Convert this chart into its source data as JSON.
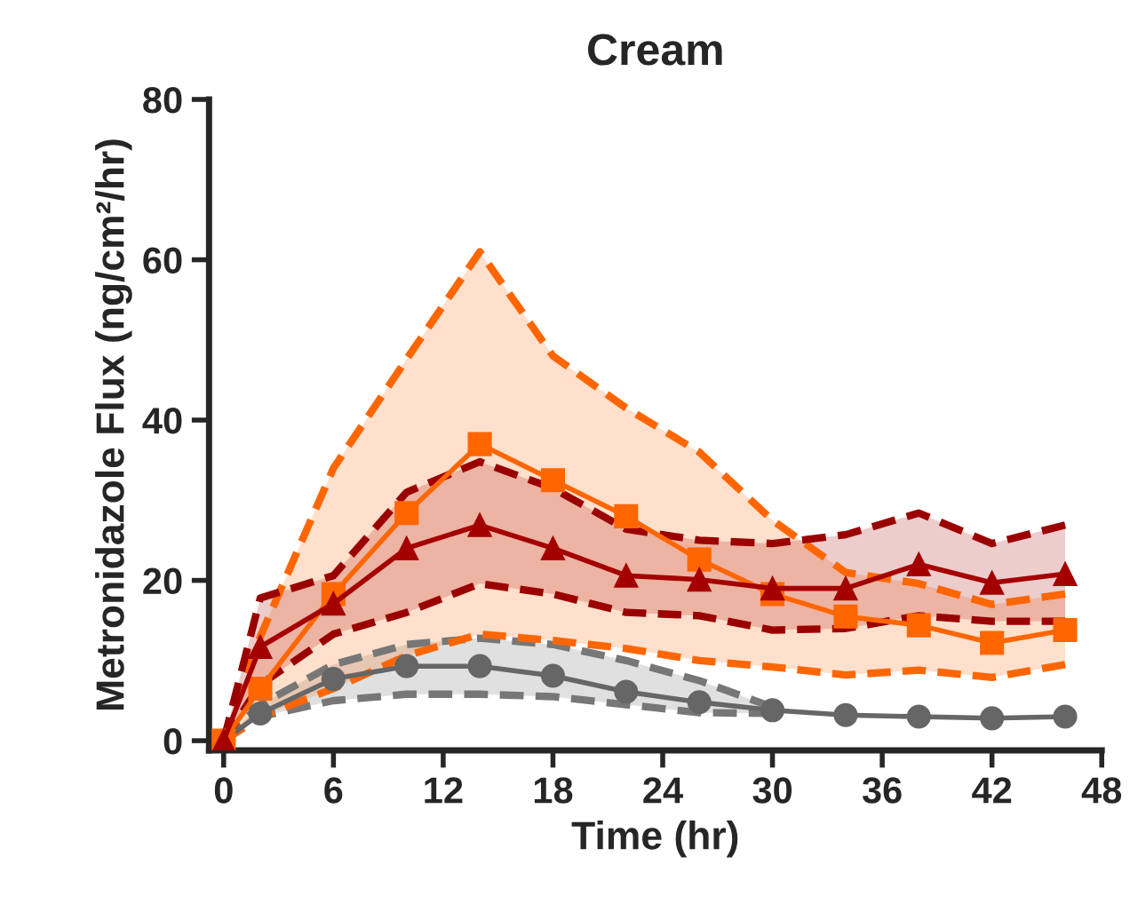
{
  "chart_data": {
    "type": "line",
    "title": "Cream",
    "xlabel": "Time (hr)",
    "ylabel": "Metronidazole Flux (ng/cm²/hr)",
    "x": [
      0,
      2,
      6,
      10,
      14,
      18,
      22,
      26,
      30,
      34,
      38,
      42,
      46
    ],
    "series": [
      {
        "color": "#666666",
        "marker": "circle",
        "values": [
          0,
          3.4,
          7.7,
          9.3,
          9.3,
          8.1,
          6.1,
          4.8,
          3.8,
          3.2,
          3.0,
          2.8,
          3.0
        ],
        "upper": [
          0,
          4.5,
          9.5,
          12,
          12.8,
          12,
          10,
          7.5,
          4.2,
          null,
          null,
          null,
          null
        ],
        "lower": [
          0,
          3,
          5,
          5.8,
          5.8,
          5.5,
          4.5,
          3.5,
          3.4,
          null,
          null,
          null,
          null
        ]
      },
      {
        "color": "#ff6600",
        "marker": "square",
        "values": [
          0,
          6.5,
          18.3,
          28.4,
          37,
          32.5,
          28,
          22.6,
          18.3,
          15.5,
          14.4,
          12.2,
          13.8
        ],
        "upper": [
          0,
          13,
          34,
          47.6,
          61,
          48,
          41.5,
          36,
          27.5,
          21,
          19.6,
          17,
          18.3
        ],
        "lower": [
          0,
          3,
          6.5,
          10.6,
          13.3,
          12.5,
          11.5,
          10,
          9.2,
          8.2,
          8.8,
          7.9,
          9.5
        ]
      },
      {
        "color": "#a50000",
        "marker": "triangle",
        "values": [
          0,
          11.7,
          17.1,
          24,
          26.9,
          24,
          20.6,
          20.1,
          19,
          19,
          22,
          19.7,
          20.8
        ],
        "upper": [
          0,
          17.8,
          20.6,
          31,
          34.8,
          31.5,
          26.4,
          25,
          24.6,
          25.7,
          28.4,
          24.6,
          26.9
        ],
        "lower": [
          0,
          7,
          13.3,
          16,
          19.6,
          18.3,
          16,
          15.6,
          13.8,
          14,
          15.6,
          14.9,
          14.9
        ]
      },
      {
        "color": "#777777",
        "marker": "none",
        "line_style": "dashed",
        "values": [
          0,
          4.5,
          9.5,
          12,
          12.8,
          12,
          10,
          7.5,
          4.2,
          null,
          null,
          null,
          null
        ]
      },
      {
        "color": "#777777",
        "marker": "none",
        "line_style": "dashed",
        "values": [
          0,
          3,
          5,
          5.8,
          5.8,
          5.5,
          4.5,
          3.5,
          3.4,
          null,
          null,
          null,
          null
        ]
      },
      {
        "color": "#ff6600",
        "marker": "none",
        "line_style": "dashed",
        "values": [
          0,
          13,
          34,
          47.6,
          61,
          48,
          41.5,
          36,
          27.5,
          21,
          19.6,
          17,
          18.3
        ]
      },
      {
        "color": "#ff6600",
        "marker": "none",
        "line_style": "dashed",
        "values": [
          0,
          3,
          6.5,
          10.6,
          13.3,
          12.5,
          11.5,
          10,
          9.2,
          8.2,
          8.8,
          7.9,
          9.5
        ]
      },
      {
        "color": "#9b0000",
        "marker": "none",
        "line_style": "dashed",
        "values": [
          0,
          17.8,
          20.6,
          31,
          34.8,
          31.5,
          26.4,
          25,
          24.6,
          25.7,
          28.4,
          24.6,
          26.9
        ]
      },
      {
        "color": "#9b0000",
        "marker": "none",
        "line_style": "dashed",
        "values": [
          0,
          7,
          13.3,
          16,
          19.6,
          18.3,
          16,
          15.6,
          13.8,
          14,
          15.6,
          14.9,
          14.9
        ]
      }
    ],
    "xlim": [
      -0.8,
      48
    ],
    "ylim": [
      -1.2,
      80
    ],
    "xticks": [
      0,
      6,
      12,
      18,
      24,
      30,
      36,
      42,
      48
    ],
    "yticks": [
      0,
      20,
      40,
      60,
      80
    ],
    "grid": false,
    "legend": false,
    "line_style": "solid"
  }
}
